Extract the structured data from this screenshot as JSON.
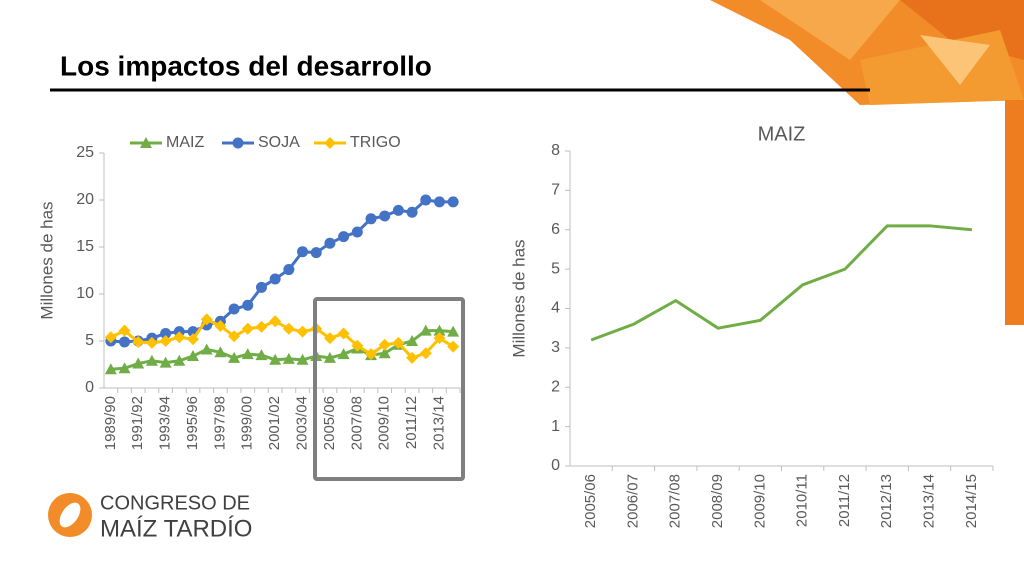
{
  "title": "Los impactos del desarrollo",
  "logo": {
    "line1": "CONGRESO DE",
    "line2": "MAÍZ TARDÍO"
  },
  "chart_data": [
    {
      "type": "line",
      "ylabel": "Millones de has",
      "categories": [
        "1989/90",
        null,
        "1991/92",
        null,
        "1993/94",
        null,
        "1995/96",
        null,
        "1997/98",
        null,
        "1999/00",
        null,
        "2001/02",
        null,
        "2003/04",
        null,
        "2005/06",
        null,
        "2007/08",
        null,
        "2009/10",
        null,
        "2011/12",
        null,
        "2013/14",
        null
      ],
      "series": [
        {
          "name": "MAIZ",
          "color": "#70ad47",
          "marker": "triangle",
          "values": [
            2.0,
            2.1,
            2.6,
            2.9,
            2.7,
            2.9,
            3.4,
            4.1,
            3.8,
            3.2,
            3.6,
            3.5,
            3.0,
            3.1,
            3.0,
            3.4,
            3.2,
            3.6,
            4.2,
            3.5,
            3.7,
            4.6,
            5.0,
            6.1,
            6.1,
            6.0
          ]
        },
        {
          "name": "SOJA",
          "color": "#4472c4",
          "marker": "circle",
          "values": [
            5.0,
            4.9,
            5.0,
            5.3,
            5.8,
            6.0,
            6.0,
            6.7,
            7.1,
            8.4,
            8.8,
            10.7,
            11.6,
            12.6,
            14.5,
            14.4,
            15.4,
            16.1,
            16.6,
            18.0,
            18.3,
            18.9,
            18.7,
            20.0,
            19.8,
            19.8
          ]
        },
        {
          "name": "TRIGO",
          "color": "#ffc000",
          "marker": "diamond",
          "values": [
            5.4,
            6.1,
            4.9,
            4.8,
            5.0,
            5.4,
            5.2,
            7.3,
            6.6,
            5.5,
            6.3,
            6.5,
            7.1,
            6.3,
            6.0,
            6.3,
            5.3,
            5.8,
            4.5,
            3.6,
            4.6,
            4.8,
            3.2,
            3.7,
            5.3,
            4.4
          ]
        }
      ],
      "ylim": [
        0,
        25
      ],
      "yticks": [
        0,
        5,
        10,
        15,
        20,
        25
      ],
      "legend": "top"
    },
    {
      "type": "line",
      "title": "MAIZ",
      "ylabel": "Millones de has",
      "categories": [
        "2005/06",
        "2006/07",
        "2007/08",
        "2008/09",
        "2009/10",
        "2010/11",
        "2011/12",
        "2012/13",
        "2013/14",
        "2014/15"
      ],
      "series": [
        {
          "name": "MAIZ",
          "color": "#70ad47",
          "marker": "none",
          "values": [
            3.2,
            3.6,
            4.2,
            3.5,
            3.7,
            4.6,
            5.0,
            6.1,
            6.1,
            6.0
          ]
        }
      ],
      "ylim": [
        0,
        8
      ],
      "yticks": [
        0,
        1,
        2,
        3,
        4,
        5,
        6,
        7,
        8
      ]
    }
  ]
}
